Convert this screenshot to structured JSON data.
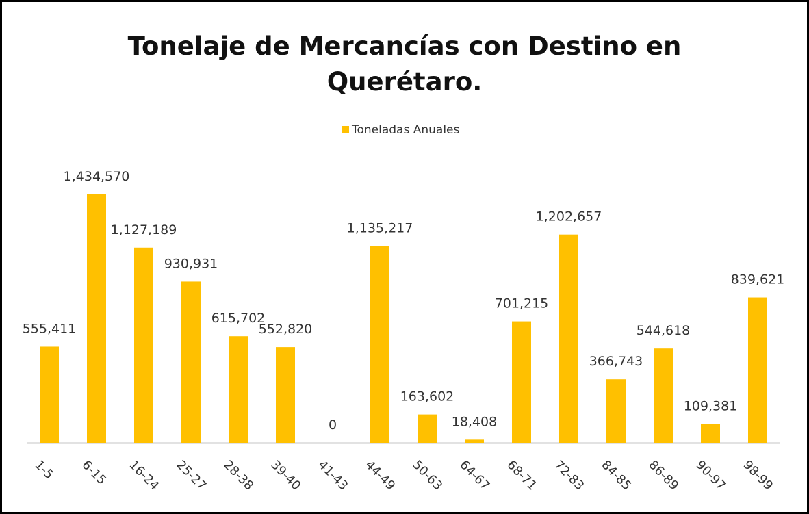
{
  "chart_data": {
    "type": "bar",
    "title": "Tonelaje de Mercancías con Destino en Querétaro.",
    "categories": [
      "1-5",
      "6-15",
      "16-24",
      "25-27",
      "28-38",
      "39-40",
      "41-43",
      "44-49",
      "50-63",
      "64-67",
      "68-71",
      "72-83",
      "84-85",
      "86-89",
      "90-97",
      "98-99"
    ],
    "series": [
      {
        "name": "Toneladas Anuales",
        "color": "#FFC000",
        "values": [
          555411,
          1434570,
          1127189,
          930931,
          615702,
          552820,
          0,
          1135217,
          163602,
          18408,
          701215,
          1202657,
          366743,
          544618,
          109381,
          839621
        ],
        "value_labels": [
          "555,411",
          "1,434,570",
          "1,127,189",
          "930,931",
          "615,702",
          "552,820",
          "0",
          "1,135,217",
          "163,602",
          "18,408",
          "701,215",
          "1,202,657",
          "366,743",
          "544,618",
          "109,381",
          "839,621"
        ]
      }
    ],
    "legend": "top"
  }
}
